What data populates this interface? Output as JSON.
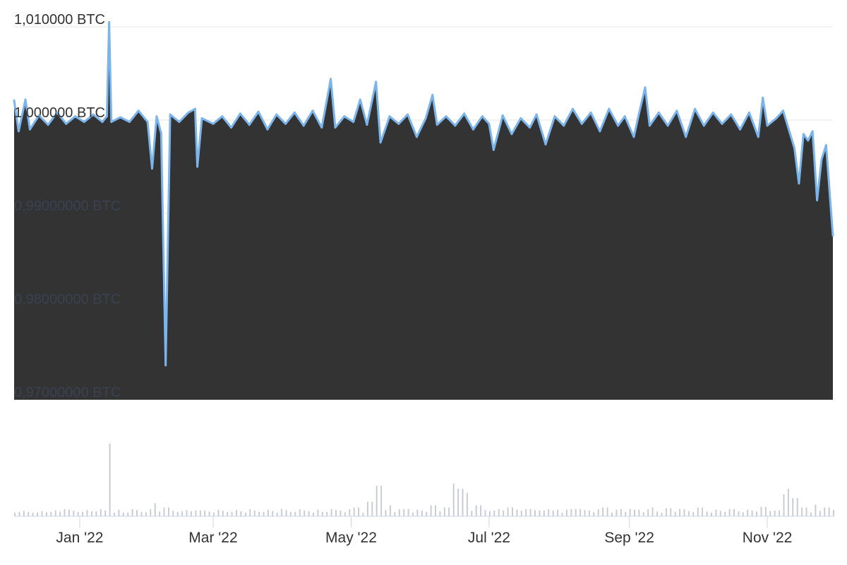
{
  "chart_data": {
    "type": "area",
    "title": "",
    "xlabel": "",
    "ylabel": "",
    "y_unit": "BTC",
    "ylim": [
      0.97,
      1.01
    ],
    "x_range": [
      "2021-12-03",
      "2022-11-30"
    ],
    "y_ticks": [
      {
        "value": 1.01,
        "label": "1,010000 BTC"
      },
      {
        "value": 1.0,
        "label": "1,000000 BTC"
      },
      {
        "value": 0.99,
        "label": "0,99000000 BTC"
      },
      {
        "value": 0.98,
        "label": "0,98000000 BTC"
      },
      {
        "value": 0.97,
        "label": "0,97000000 BTC"
      }
    ],
    "x_ticks": [
      {
        "date": "2022-01-01",
        "label": "Jan '22"
      },
      {
        "date": "2022-03-01",
        "label": "Mar '22"
      },
      {
        "date": "2022-05-01",
        "label": "May '22"
      },
      {
        "date": "2022-07-01",
        "label": "Jul '22"
      },
      {
        "date": "2022-09-01",
        "label": "Sep '22"
      },
      {
        "date": "2022-11-01",
        "label": "Nov '22"
      }
    ],
    "series": [
      {
        "color": "#7cb5ec",
        "fill": "#333333",
        "points": [
          [
            "2021-12-03",
            1.0021
          ],
          [
            "2021-12-05",
            0.9988
          ],
          [
            "2021-12-08",
            1.0022
          ],
          [
            "2021-12-10",
            0.999
          ],
          [
            "2021-12-14",
            1.0005
          ],
          [
            "2021-12-18",
            0.9995
          ],
          [
            "2021-12-22",
            1.0008
          ],
          [
            "2021-12-26",
            0.9996
          ],
          [
            "2021-12-30",
            1.0004
          ],
          [
            "2022-01-03",
            0.9998
          ],
          [
            "2022-01-07",
            1.0006
          ],
          [
            "2022-01-11",
            0.9998
          ],
          [
            "2022-01-13",
            1.0004
          ],
          [
            "2022-01-14",
            1.0105
          ],
          [
            "2022-01-15",
            0.9998
          ],
          [
            "2022-01-19",
            1.0003
          ],
          [
            "2022-01-23",
            0.9998
          ],
          [
            "2022-01-27",
            1.001
          ],
          [
            "2022-01-31",
            0.9998
          ],
          [
            "2022-02-02",
            0.9948
          ],
          [
            "2022-02-04",
            1.0004
          ],
          [
            "2022-02-06",
            0.9986
          ],
          [
            "2022-02-08",
            0.9737
          ],
          [
            "2022-02-10",
            1.0006
          ],
          [
            "2022-02-14",
            0.9998
          ],
          [
            "2022-02-18",
            1.0008
          ],
          [
            "2022-02-21",
            1.0012
          ],
          [
            "2022-02-22",
            0.995
          ],
          [
            "2022-02-24",
            1.0002
          ],
          [
            "2022-03-01",
            0.9996
          ],
          [
            "2022-03-05",
            1.0004
          ],
          [
            "2022-03-09",
            0.9992
          ],
          [
            "2022-03-13",
            1.0007
          ],
          [
            "2022-03-17",
            0.9995
          ],
          [
            "2022-03-21",
            1.0009
          ],
          [
            "2022-03-25",
            0.999
          ],
          [
            "2022-03-29",
            1.0006
          ],
          [
            "2022-04-02",
            0.9996
          ],
          [
            "2022-04-06",
            1.0008
          ],
          [
            "2022-04-10",
            0.9994
          ],
          [
            "2022-04-14",
            1.001
          ],
          [
            "2022-04-18",
            0.9992
          ],
          [
            "2022-04-22",
            1.0044
          ],
          [
            "2022-04-24",
            0.9992
          ],
          [
            "2022-04-28",
            1.0004
          ],
          [
            "2022-05-02",
            0.9998
          ],
          [
            "2022-05-05",
            1.0022
          ],
          [
            "2022-05-08",
            0.9995
          ],
          [
            "2022-05-12",
            1.0041
          ],
          [
            "2022-05-14",
            0.9976
          ],
          [
            "2022-05-18",
            1.0004
          ],
          [
            "2022-05-22",
            0.9996
          ],
          [
            "2022-05-26",
            1.0006
          ],
          [
            "2022-05-30",
            0.9982
          ],
          [
            "2022-06-03",
            1.0002
          ],
          [
            "2022-06-06",
            1.0027
          ],
          [
            "2022-06-08",
            0.9995
          ],
          [
            "2022-06-12",
            1.0004
          ],
          [
            "2022-06-16",
            0.9994
          ],
          [
            "2022-06-20",
            1.0007
          ],
          [
            "2022-06-24",
            0.999
          ],
          [
            "2022-06-28",
            1.0004
          ],
          [
            "2022-07-01",
            0.9996
          ],
          [
            "2022-07-03",
            0.9968
          ],
          [
            "2022-07-07",
            1.0005
          ],
          [
            "2022-07-11",
            0.9985
          ],
          [
            "2022-07-15",
            1.0002
          ],
          [
            "2022-07-19",
            0.9992
          ],
          [
            "2022-07-22",
            1.0006
          ],
          [
            "2022-07-26",
            0.9974
          ],
          [
            "2022-07-30",
            1.0004
          ],
          [
            "2022-08-03",
            0.9994
          ],
          [
            "2022-08-07",
            1.0012
          ],
          [
            "2022-08-11",
            0.9996
          ],
          [
            "2022-08-15",
            1.0008
          ],
          [
            "2022-08-19",
            0.9988
          ],
          [
            "2022-08-23",
            1.0012
          ],
          [
            "2022-08-27",
            0.9994
          ],
          [
            "2022-08-30",
            1.0004
          ],
          [
            "2022-09-03",
            0.9982
          ],
          [
            "2022-09-05",
            1.0004
          ],
          [
            "2022-09-08",
            1.0035
          ],
          [
            "2022-09-10",
            0.9994
          ],
          [
            "2022-09-14",
            1.0008
          ],
          [
            "2022-09-18",
            0.9994
          ],
          [
            "2022-09-22",
            1.001
          ],
          [
            "2022-09-26",
            0.9982
          ],
          [
            "2022-09-30",
            1.0012
          ],
          [
            "2022-10-04",
            0.9994
          ],
          [
            "2022-10-08",
            1.0008
          ],
          [
            "2022-10-12",
            0.9996
          ],
          [
            "2022-10-16",
            1.0006
          ],
          [
            "2022-10-20",
            0.999
          ],
          [
            "2022-10-24",
            1.0008
          ],
          [
            "2022-10-28",
            0.9982
          ],
          [
            "2022-10-30",
            1.0024
          ],
          [
            "2022-11-01",
            0.9994
          ],
          [
            "2022-11-05",
            1.0002
          ],
          [
            "2022-11-08",
            1.001
          ],
          [
            "2022-11-10",
            0.9994
          ],
          [
            "2022-11-13",
            0.997
          ],
          [
            "2022-11-15",
            0.9932
          ],
          [
            "2022-11-17",
            0.9985
          ],
          [
            "2022-11-19",
            0.9978
          ],
          [
            "2022-11-21",
            0.9988
          ],
          [
            "2022-11-23",
            0.9914
          ],
          [
            "2022-11-25",
            0.9958
          ],
          [
            "2022-11-27",
            0.9973
          ],
          [
            "2022-11-30",
            0.9876
          ]
        ]
      }
    ],
    "navigator": {
      "type": "bar",
      "color": "#c8ccd6",
      "points": [
        [
          "2021-12-05",
          0.06
        ],
        [
          "2021-12-12",
          0.05
        ],
        [
          "2021-12-19",
          0.06
        ],
        [
          "2021-12-25",
          0.1
        ],
        [
          "2022-01-01",
          0.06
        ],
        [
          "2022-01-08",
          0.07
        ],
        [
          "2022-01-14",
          1.0
        ],
        [
          "2022-01-21",
          0.05
        ],
        [
          "2022-01-28",
          0.06
        ],
        [
          "2022-02-03",
          0.18
        ],
        [
          "2022-02-08",
          0.12
        ],
        [
          "2022-02-15",
          0.07
        ],
        [
          "2022-02-22",
          0.08
        ],
        [
          "2022-03-01",
          0.05
        ],
        [
          "2022-03-08",
          0.06
        ],
        [
          "2022-03-15",
          0.05
        ],
        [
          "2022-03-22",
          0.06
        ],
        [
          "2022-03-29",
          0.05
        ],
        [
          "2022-04-05",
          0.06
        ],
        [
          "2022-04-12",
          0.07
        ],
        [
          "2022-04-19",
          0.06
        ],
        [
          "2022-04-26",
          0.08
        ],
        [
          "2022-05-03",
          0.12
        ],
        [
          "2022-05-09",
          0.2
        ],
        [
          "2022-05-12",
          0.38
        ],
        [
          "2022-05-13",
          0.42
        ],
        [
          "2022-05-18",
          0.15
        ],
        [
          "2022-05-25",
          0.1
        ],
        [
          "2022-06-01",
          0.08
        ],
        [
          "2022-06-06",
          0.15
        ],
        [
          "2022-06-12",
          0.12
        ],
        [
          "2022-06-16",
          0.45
        ],
        [
          "2022-06-18",
          0.38
        ],
        [
          "2022-06-21",
          0.32
        ],
        [
          "2022-06-26",
          0.15
        ],
        [
          "2022-07-03",
          0.08
        ],
        [
          "2022-07-10",
          0.12
        ],
        [
          "2022-07-17",
          0.1
        ],
        [
          "2022-07-24",
          0.08
        ],
        [
          "2022-07-31",
          0.09
        ],
        [
          "2022-08-07",
          0.1
        ],
        [
          "2022-08-14",
          0.08
        ],
        [
          "2022-08-21",
          0.12
        ],
        [
          "2022-08-28",
          0.1
        ],
        [
          "2022-09-04",
          0.09
        ],
        [
          "2022-09-11",
          0.12
        ],
        [
          "2022-09-18",
          0.11
        ],
        [
          "2022-09-25",
          0.1
        ],
        [
          "2022-10-02",
          0.12
        ],
        [
          "2022-10-09",
          0.09
        ],
        [
          "2022-10-16",
          0.1
        ],
        [
          "2022-10-23",
          0.09
        ],
        [
          "2022-10-30",
          0.13
        ],
        [
          "2022-11-05",
          0.08
        ],
        [
          "2022-11-09",
          0.3
        ],
        [
          "2022-11-11",
          0.38
        ],
        [
          "2022-11-13",
          0.25
        ],
        [
          "2022-11-17",
          0.12
        ],
        [
          "2022-11-22",
          0.16
        ],
        [
          "2022-11-27",
          0.12
        ]
      ]
    }
  }
}
